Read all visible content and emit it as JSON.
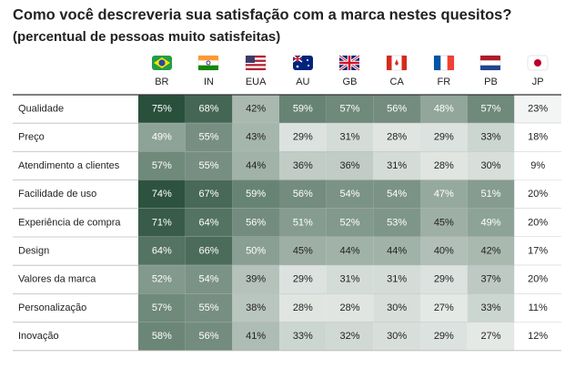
{
  "chart_data": {
    "type": "heatmap",
    "title": "Como você descreveria sua satisfação com a marca nestes quesitos?",
    "subtitle": "(percentual de pessoas muito satisfeitas)",
    "x": [
      "BR",
      "IN",
      "EUA",
      "AU",
      "GB",
      "CA",
      "FR",
      "PB",
      "JP"
    ],
    "categories": [
      "Qualidade",
      "Preço",
      "Atendimento a clientes",
      "Facilidade de uso",
      "Experiência de compra",
      "Design",
      "Valores da marca",
      "Personalização",
      "Inovação"
    ],
    "values": [
      [
        75,
        68,
        42,
        59,
        57,
        56,
        48,
        57,
        23
      ],
      [
        49,
        55,
        43,
        29,
        31,
        28,
        29,
        33,
        18
      ],
      [
        57,
        55,
        44,
        36,
        36,
        31,
        28,
        30,
        9
      ],
      [
        74,
        67,
        59,
        56,
        54,
        54,
        47,
        51,
        20
      ],
      [
        71,
        64,
        56,
        51,
        52,
        53,
        45,
        49,
        20
      ],
      [
        64,
        66,
        50,
        45,
        44,
        44,
        40,
        42,
        17
      ],
      [
        52,
        54,
        39,
        29,
        31,
        31,
        29,
        37,
        20
      ],
      [
        57,
        55,
        38,
        28,
        28,
        30,
        27,
        33,
        11
      ],
      [
        58,
        56,
        41,
        33,
        32,
        30,
        29,
        27,
        12
      ]
    ],
    "value_labels": [
      [
        "75%",
        "68%",
        "42%",
        "59%",
        "57%",
        "56%",
        "48%",
        "57%",
        "23%"
      ],
      [
        "49%",
        "55%",
        "43%",
        "29%",
        "31%",
        "28%",
        "29%",
        "33%",
        "18%"
      ],
      [
        "57%",
        "55%",
        "44%",
        "36%",
        "36%",
        "31%",
        "28%",
        "30%",
        "9%"
      ],
      [
        "74%",
        "67%",
        "59%",
        "56%",
        "54%",
        "54%",
        "47%",
        "51%",
        "20%"
      ],
      [
        "71%",
        "64%",
        "56%",
        "51%",
        "52%",
        "53%",
        "45%",
        "49%",
        "20%"
      ],
      [
        "64%",
        "66%",
        "50%",
        "45%",
        "44%",
        "44%",
        "40%",
        "42%",
        "17%"
      ],
      [
        "52%",
        "54%",
        "39%",
        "29%",
        "31%",
        "31%",
        "29%",
        "37%",
        "20%"
      ],
      [
        "57%",
        "55%",
        "38%",
        "28%",
        "28%",
        "30%",
        "27%",
        "33%",
        "11%"
      ],
      [
        "58%",
        "56%",
        "41%",
        "33%",
        "32%",
        "30%",
        "29%",
        "27%",
        "12%"
      ]
    ],
    "color_low": "#ffffff",
    "color_high": "#1d4630"
  }
}
